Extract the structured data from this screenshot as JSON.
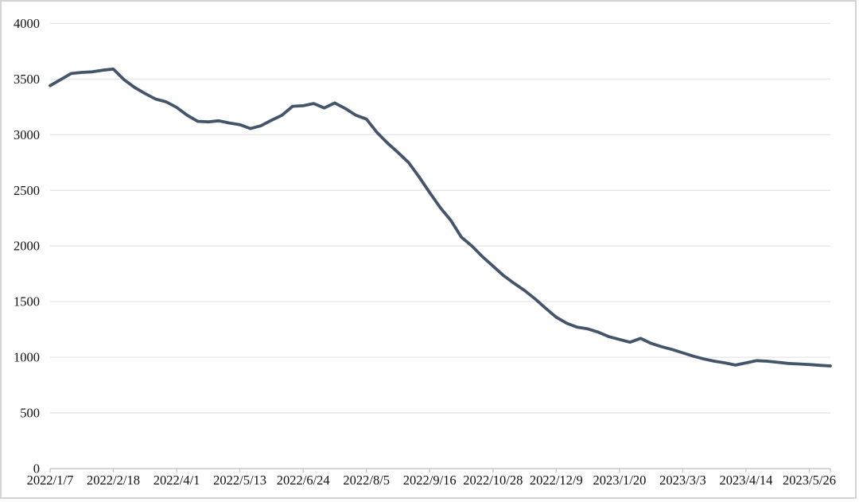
{
  "chart_data": {
    "type": "line",
    "title": "",
    "xlabel": "",
    "ylabel": "",
    "ylim": [
      0,
      4000
    ],
    "y_ticks": [
      0,
      500,
      1000,
      1500,
      2000,
      2500,
      3000,
      3500,
      4000
    ],
    "x_tick_labels": [
      "2022/1/7",
      "2022/2/18",
      "2022/4/1",
      "2022/5/13",
      "2022/6/24",
      "2022/8/5",
      "2022/9/16",
      "2022/10/28",
      "2022/12/9",
      "2023/1/20",
      "2023/3/3",
      "2023/4/14",
      "2023/5/26"
    ],
    "x_tick_interval_points": 6,
    "grid": "horizontal-only",
    "legend": "none",
    "colors": {
      "line": "#44546A",
      "gridline": "#E7E7E7",
      "axis": "#C8C8C8",
      "label": "#111111",
      "frame_border": "#D4D4D4",
      "background": "#FFFFFF"
    },
    "series": [
      {
        "name": "weekly-value-series",
        "dates": [
          "2022/1/7",
          "2022/1/14",
          "2022/1/21",
          "2022/1/28",
          "2022/2/4",
          "2022/2/11",
          "2022/2/18",
          "2022/2/25",
          "2022/3/4",
          "2022/3/11",
          "2022/3/18",
          "2022/3/25",
          "2022/4/1",
          "2022/4/8",
          "2022/4/15",
          "2022/4/22",
          "2022/4/29",
          "2022/5/6",
          "2022/5/13",
          "2022/5/20",
          "2022/5/27",
          "2022/6/3",
          "2022/6/10",
          "2022/6/17",
          "2022/6/24",
          "2022/7/1",
          "2022/7/8",
          "2022/7/15",
          "2022/7/22",
          "2022/7/29",
          "2022/8/5",
          "2022/8/12",
          "2022/8/19",
          "2022/8/26",
          "2022/9/2",
          "2022/9/9",
          "2022/9/16",
          "2022/9/23",
          "2022/9/30",
          "2022/10/7",
          "2022/10/14",
          "2022/10/21",
          "2022/10/28",
          "2022/11/4",
          "2022/11/11",
          "2022/11/18",
          "2022/11/25",
          "2022/12/2",
          "2022/12/9",
          "2022/12/16",
          "2022/12/23",
          "2022/12/30",
          "2023/1/6",
          "2023/1/13",
          "2023/1/20",
          "2023/1/27",
          "2023/2/3",
          "2023/2/10",
          "2023/2/17",
          "2023/2/24",
          "2023/3/3",
          "2023/3/10",
          "2023/3/17",
          "2023/3/24",
          "2023/3/31",
          "2023/4/7",
          "2023/4/14",
          "2023/4/21",
          "2023/4/28",
          "2023/5/5",
          "2023/5/12",
          "2023/5/19",
          "2023/5/26",
          "2023/6/2",
          "2023/6/9"
        ],
        "values": [
          3440,
          3495,
          3550,
          3560,
          3565,
          3580,
          3590,
          3495,
          3425,
          3370,
          3320,
          3295,
          3245,
          3175,
          3120,
          3115,
          3125,
          3105,
          3090,
          3055,
          3080,
          3130,
          3175,
          3255,
          3260,
          3280,
          3240,
          3285,
          3235,
          3175,
          3140,
          3020,
          2925,
          2840,
          2750,
          2620,
          2480,
          2345,
          2230,
          2080,
          2000,
          1905,
          1820,
          1735,
          1665,
          1600,
          1525,
          1440,
          1360,
          1305,
          1270,
          1255,
          1225,
          1185,
          1160,
          1135,
          1170,
          1125,
          1095,
          1070,
          1040,
          1010,
          985,
          965,
          950,
          930,
          950,
          970,
          965,
          955,
          945,
          940,
          935,
          928,
          922
        ]
      }
    ]
  }
}
